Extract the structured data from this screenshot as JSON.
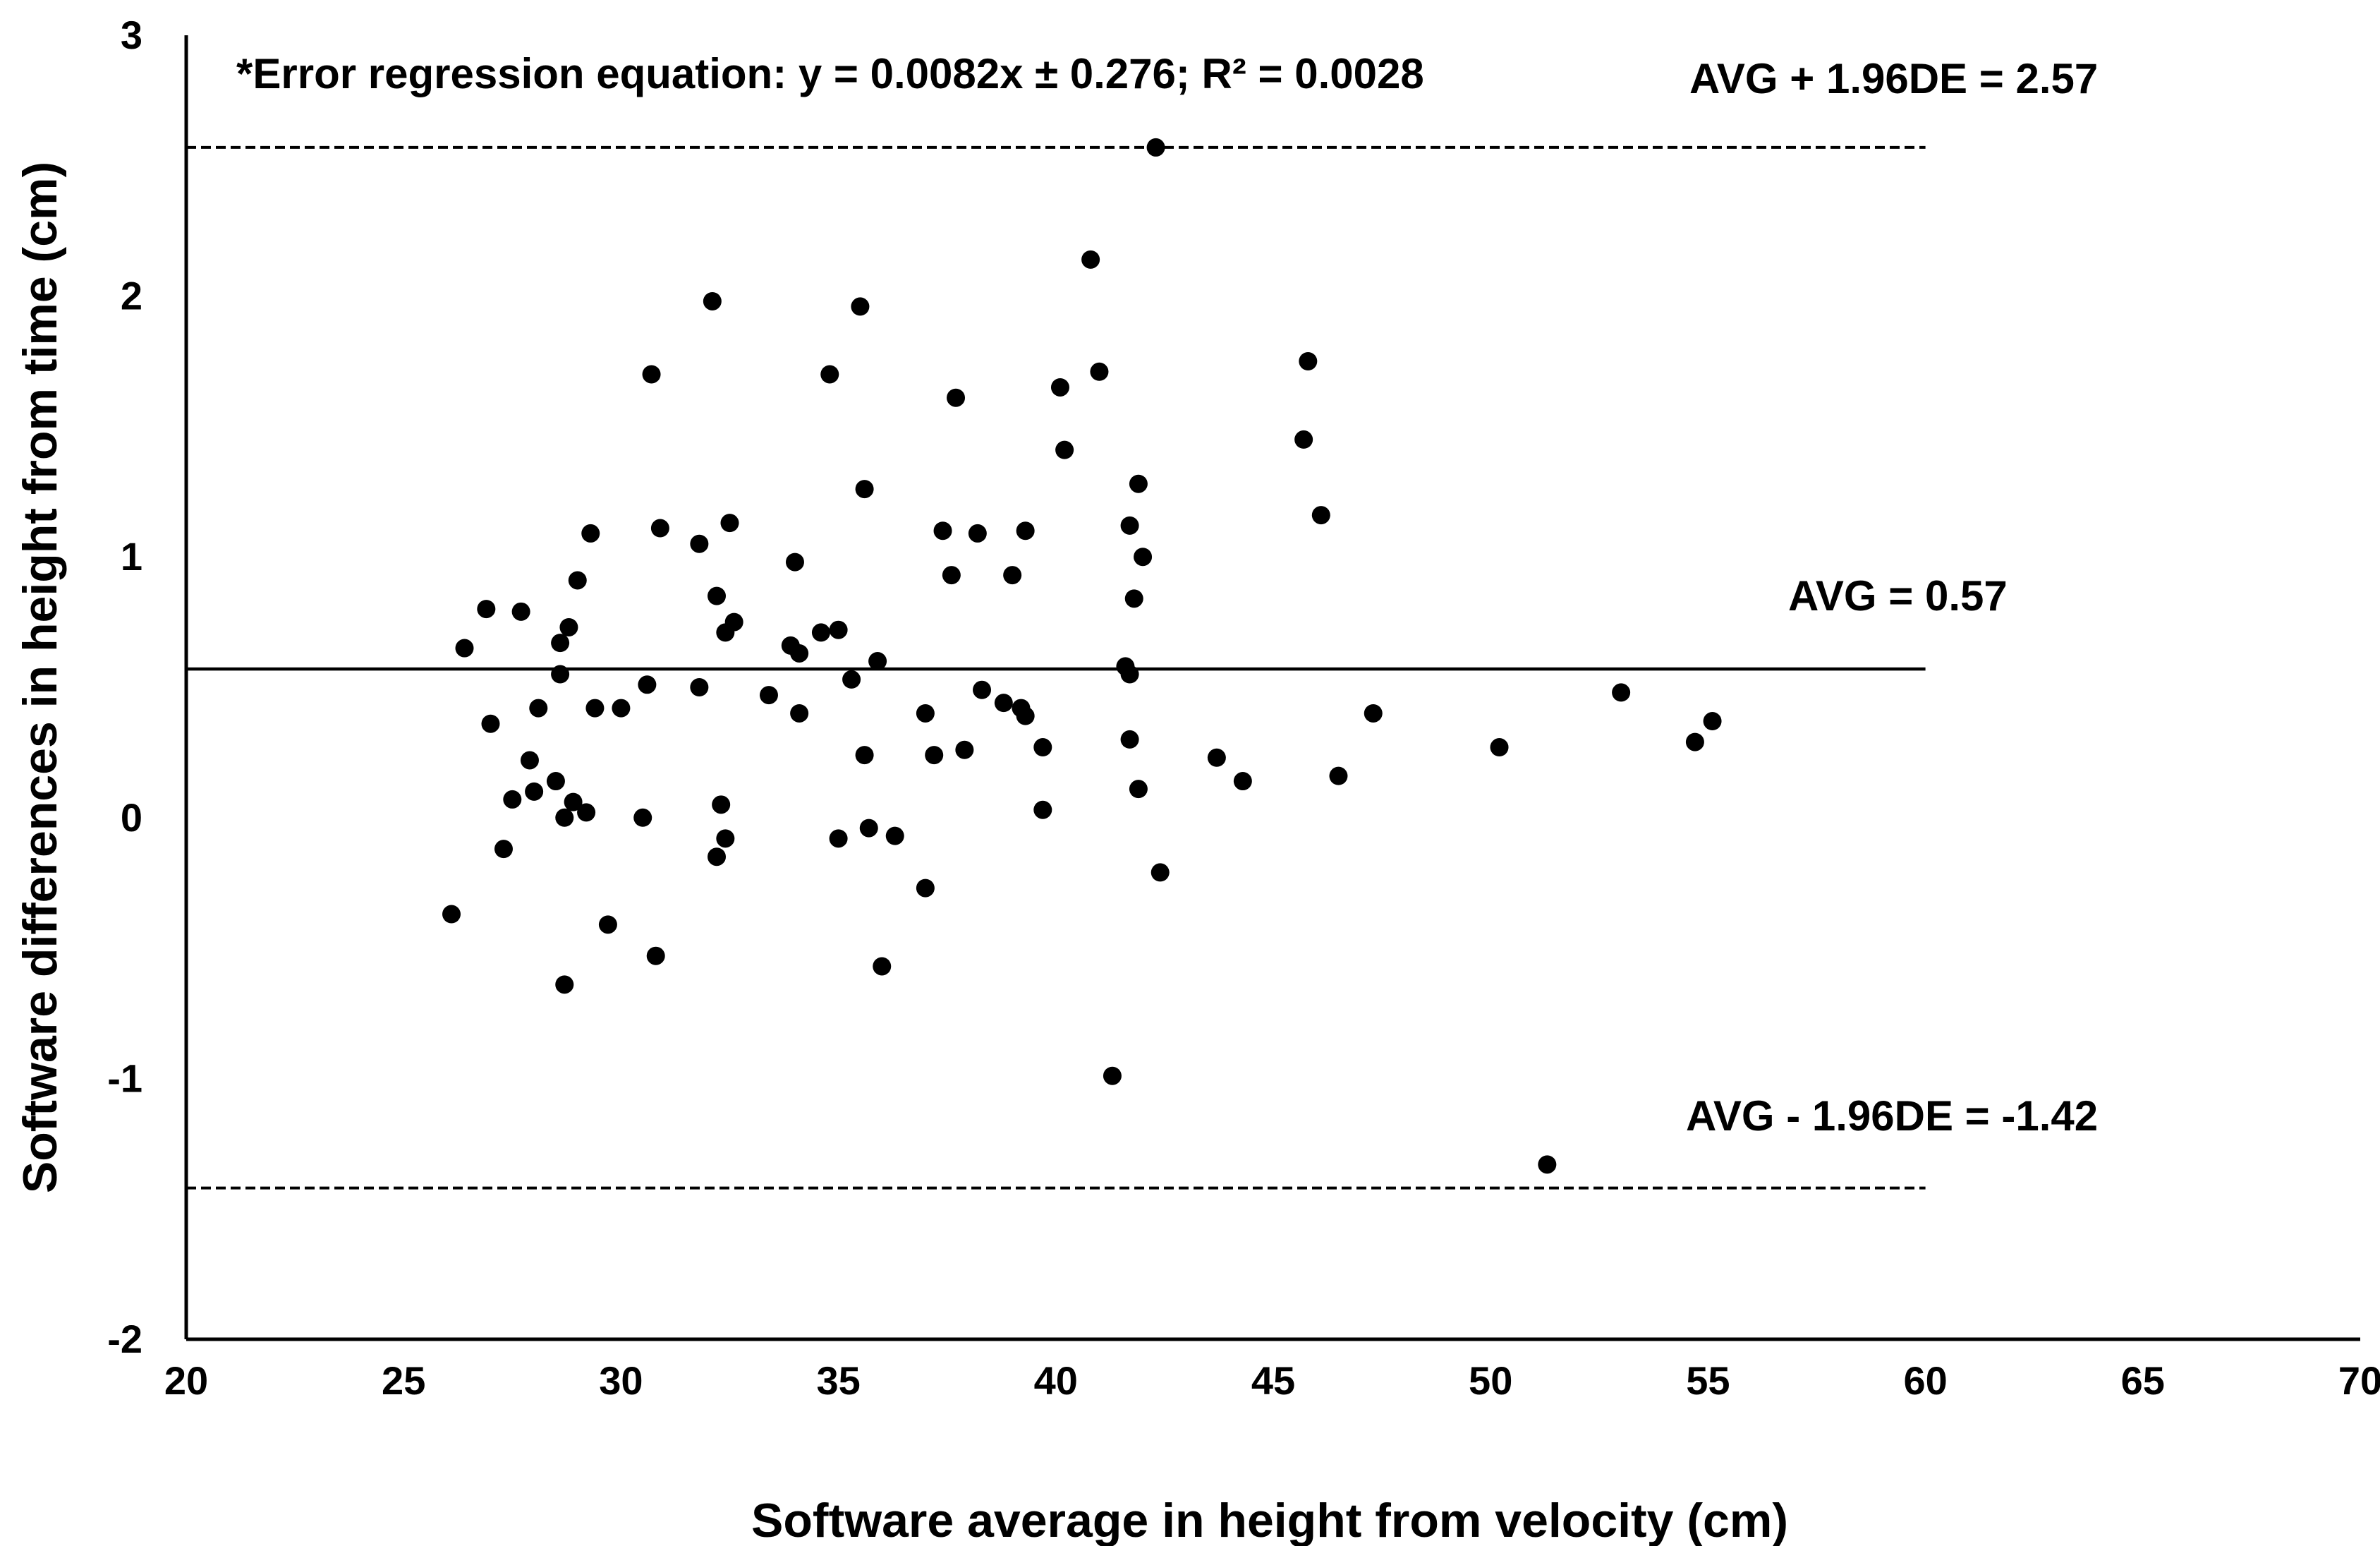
{
  "chart_data": {
    "type": "scatter",
    "title": "",
    "xlabel": "Software average in height from velocity (cm)",
    "ylabel": "Software differences in height from time (cm)",
    "xlim": [
      20,
      70
    ],
    "ylim": [
      -2,
      3
    ],
    "xticks": [
      "20",
      "25",
      "30",
      "35",
      "40",
      "45",
      "50",
      "55",
      "60",
      "65",
      "70"
    ],
    "yticks": [
      "-2",
      "-1",
      "0",
      "1",
      "2",
      "3"
    ],
    "grid": false,
    "reference_lines": [
      {
        "name": "avg_plus",
        "y": 2.57,
        "style": "dashed",
        "label": "AVG + 1.96DE = 2.57"
      },
      {
        "name": "avg",
        "y": 0.57,
        "style": "solid",
        "label": "AVG = 0.57"
      },
      {
        "name": "avg_minus",
        "y": -1.42,
        "style": "dashed",
        "label": "AVG - 1.96DE = -1.42"
      }
    ],
    "reference_line_x_range": [
      20,
      60
    ],
    "annotation": "*Error regression equation: y = 0.0082x ± 0.276; R² = 0.0028",
    "points": [
      [
        26.1,
        -0.37
      ],
      [
        26.4,
        0.65
      ],
      [
        26.9,
        0.8
      ],
      [
        27.0,
        0.36
      ],
      [
        27.3,
        -0.12
      ],
      [
        27.5,
        0.07
      ],
      [
        27.7,
        0.79
      ],
      [
        27.9,
        0.22
      ],
      [
        28.0,
        0.1
      ],
      [
        28.1,
        0.42
      ],
      [
        28.5,
        0.14
      ],
      [
        28.6,
        0.67
      ],
      [
        28.6,
        0.55
      ],
      [
        28.7,
        -0.64
      ],
      [
        28.7,
        0.0
      ],
      [
        28.8,
        0.73
      ],
      [
        28.9,
        0.06
      ],
      [
        29.0,
        0.91
      ],
      [
        29.2,
        0.02
      ],
      [
        29.3,
        1.09
      ],
      [
        29.4,
        0.42
      ],
      [
        29.7,
        -0.41
      ],
      [
        30.0,
        0.42
      ],
      [
        30.5,
        0.0
      ],
      [
        30.6,
        0.51
      ],
      [
        30.7,
        1.7
      ],
      [
        30.9,
        1.11
      ],
      [
        30.8,
        -0.53
      ],
      [
        31.8,
        1.05
      ],
      [
        31.8,
        0.5
      ],
      [
        32.1,
        1.98
      ],
      [
        32.2,
        0.85
      ],
      [
        32.2,
        -0.15
      ],
      [
        32.3,
        0.05
      ],
      [
        32.4,
        -0.08
      ],
      [
        32.4,
        0.71
      ],
      [
        32.5,
        1.13
      ],
      [
        32.6,
        0.75
      ],
      [
        33.4,
        0.47
      ],
      [
        33.9,
        0.66
      ],
      [
        34.0,
        0.98
      ],
      [
        34.1,
        0.63
      ],
      [
        34.1,
        0.4
      ],
      [
        34.6,
        0.71
      ],
      [
        34.8,
        1.7
      ],
      [
        35.0,
        0.72
      ],
      [
        35.0,
        -0.08
      ],
      [
        35.3,
        0.53
      ],
      [
        35.5,
        1.96
      ],
      [
        35.6,
        1.26
      ],
      [
        35.6,
        0.24
      ],
      [
        35.7,
        -0.04
      ],
      [
        35.9,
        0.6
      ],
      [
        36.0,
        -0.57
      ],
      [
        36.3,
        -0.07
      ],
      [
        37.0,
        0.4
      ],
      [
        37.0,
        -0.27
      ],
      [
        37.2,
        0.24
      ],
      [
        37.4,
        1.1
      ],
      [
        37.6,
        0.93
      ],
      [
        37.7,
        1.61
      ],
      [
        37.9,
        0.26
      ],
      [
        38.2,
        1.09
      ],
      [
        38.3,
        0.49
      ],
      [
        38.8,
        0.44
      ],
      [
        39.0,
        0.93
      ],
      [
        39.2,
        0.42
      ],
      [
        39.3,
        1.1
      ],
      [
        39.3,
        0.39
      ],
      [
        39.7,
        0.27
      ],
      [
        39.7,
        0.03
      ],
      [
        40.1,
        1.65
      ],
      [
        40.2,
        1.41
      ],
      [
        40.8,
        2.14
      ],
      [
        41.0,
        1.71
      ],
      [
        41.3,
        -0.99
      ],
      [
        41.6,
        0.58
      ],
      [
        41.7,
        1.12
      ],
      [
        41.7,
        0.55
      ],
      [
        41.7,
        0.3
      ],
      [
        41.8,
        0.84
      ],
      [
        41.9,
        1.28
      ],
      [
        41.9,
        0.11
      ],
      [
        42.0,
        1.0
      ],
      [
        42.3,
        2.57
      ],
      [
        42.4,
        -0.21
      ],
      [
        43.7,
        0.23
      ],
      [
        44.3,
        0.14
      ],
      [
        45.7,
        1.45
      ],
      [
        45.8,
        1.75
      ],
      [
        46.1,
        1.16
      ],
      [
        46.5,
        0.16
      ],
      [
        47.3,
        0.4
      ],
      [
        50.2,
        0.27
      ],
      [
        51.3,
        -1.33
      ],
      [
        53.0,
        0.48
      ],
      [
        54.7,
        0.29
      ],
      [
        55.1,
        0.37
      ]
    ]
  }
}
